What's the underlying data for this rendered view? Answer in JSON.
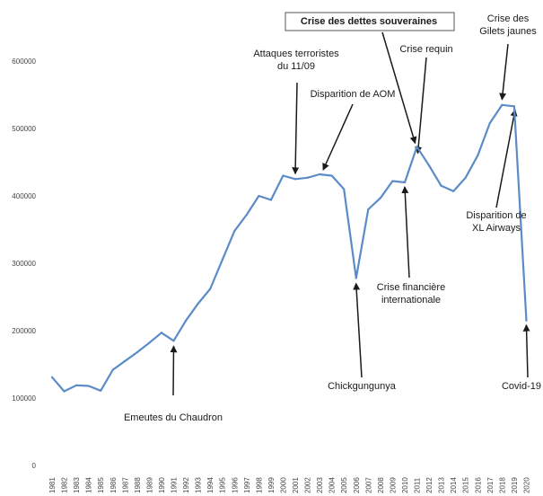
{
  "chart_data": {
    "type": "line",
    "title": "",
    "xlabel": "",
    "ylabel": "",
    "ylim": [
      0,
      600000
    ],
    "yticks": [
      0,
      100000,
      200000,
      300000,
      400000,
      500000,
      600000
    ],
    "ytick_labels": [
      "0",
      "100000",
      "200000",
      "300000",
      "400000",
      "500000",
      "600000"
    ],
    "grid": false,
    "line_color": "#5b8cc8",
    "categories": [
      "1981",
      "1982",
      "1983",
      "1984",
      "1985",
      "1986",
      "1987",
      "1988",
      "1989",
      "1990",
      "1991",
      "1992",
      "1993",
      "1994",
      "1995",
      "1996",
      "1997",
      "1998",
      "1999",
      "2000",
      "2001",
      "2002",
      "2003",
      "2004",
      "2005",
      "2006",
      "2007",
      "2008",
      "2009",
      "2010",
      "2011",
      "2012",
      "2013",
      "2014",
      "2015",
      "2016",
      "2017",
      "2018",
      "2019",
      "2020"
    ],
    "series": [
      {
        "values": [
          131000,
          110000,
          119000,
          118000,
          111000,
          142000,
          155000,
          168000,
          182000,
          197000,
          185000,
          215000,
          240000,
          262000,
          305000,
          348000,
          372000,
          400000,
          394000,
          430000,
          425000,
          427000,
          432000,
          430000,
          410000,
          278000,
          380000,
          397000,
          422000,
          420000,
          473000,
          445000,
          415000,
          407000,
          427000,
          460000,
          508000,
          535000,
          533000,
          215000
        ]
      }
    ],
    "annotations": [
      {
        "text": [
          "Emeutes du Chaudron"
        ],
        "year": "1991",
        "value": 185000
      },
      {
        "text": [
          "Attaques terroristes",
          "du 11/09"
        ],
        "year": "2001",
        "value": 425000
      },
      {
        "text": [
          "Disparition de AOM"
        ],
        "year": "2003",
        "value": 432000
      },
      {
        "text": [
          "Crise des dettes souveraines"
        ],
        "year": "2011",
        "value": 473000,
        "boxed": true
      },
      {
        "text": [
          "Crise requin"
        ],
        "year": "2011",
        "value": 458000
      },
      {
        "text": [
          "Crise des",
          "Gilets jaunes"
        ],
        "year": "2018",
        "value": 535000
      },
      {
        "text": [
          "Disparition de",
          "XL Airways"
        ],
        "year": "2019",
        "value": 533000
      },
      {
        "text": [
          "Chickgungunya"
        ],
        "year": "2006",
        "value": 278000
      },
      {
        "text": [
          "Crise financière",
          "internationale"
        ],
        "year": "2010",
        "value": 420000
      },
      {
        "text": [
          "Covid-19"
        ],
        "year": "2020",
        "value": 215000
      }
    ]
  }
}
